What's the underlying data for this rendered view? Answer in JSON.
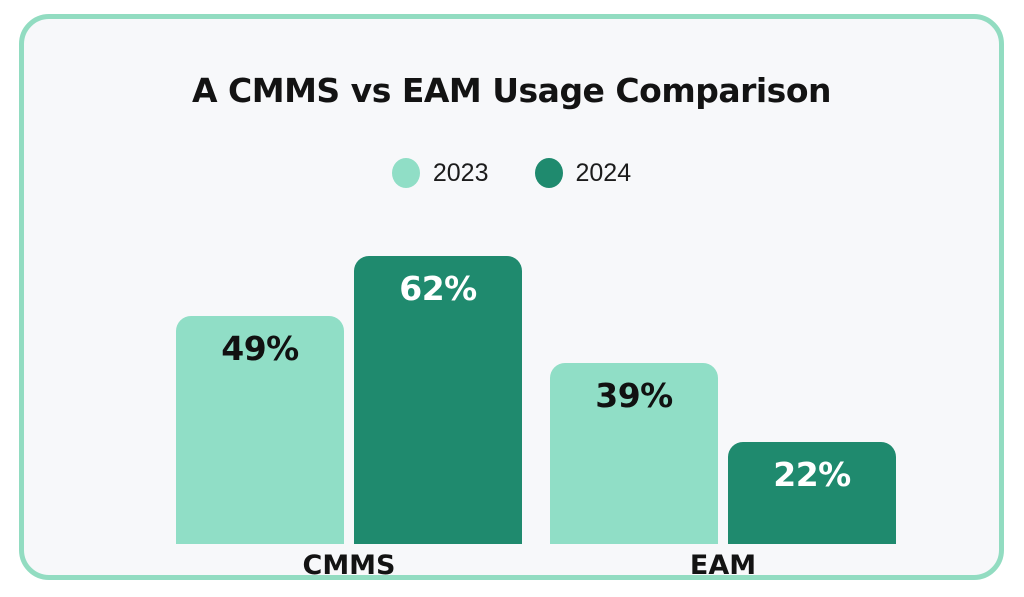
{
  "page": {
    "background": "#ffffff",
    "card_background": "#f7f8fa",
    "card_border_color": "#92dcc1"
  },
  "chart_data": {
    "type": "bar",
    "title": "A CMMS vs EAM Usage Comparison",
    "title_color": "#131313",
    "categories": [
      "CMMS",
      "EAM"
    ],
    "series": [
      {
        "name": "2023",
        "color": "#90dec6",
        "label_color": "#111111",
        "values": [
          49,
          39
        ]
      },
      {
        "name": "2024",
        "color": "#1f8a6e",
        "label_color": "#ffffff",
        "values": [
          62,
          22
        ]
      }
    ],
    "unit": "%",
    "value_labels": [
      [
        "49%",
        "39%"
      ],
      [
        "62%",
        "22%"
      ]
    ],
    "legend_position": "top",
    "legend_labels": [
      "2023",
      "2024"
    ],
    "grid": false,
    "axes_hidden": true,
    "ylim": [
      0,
      100
    ]
  }
}
